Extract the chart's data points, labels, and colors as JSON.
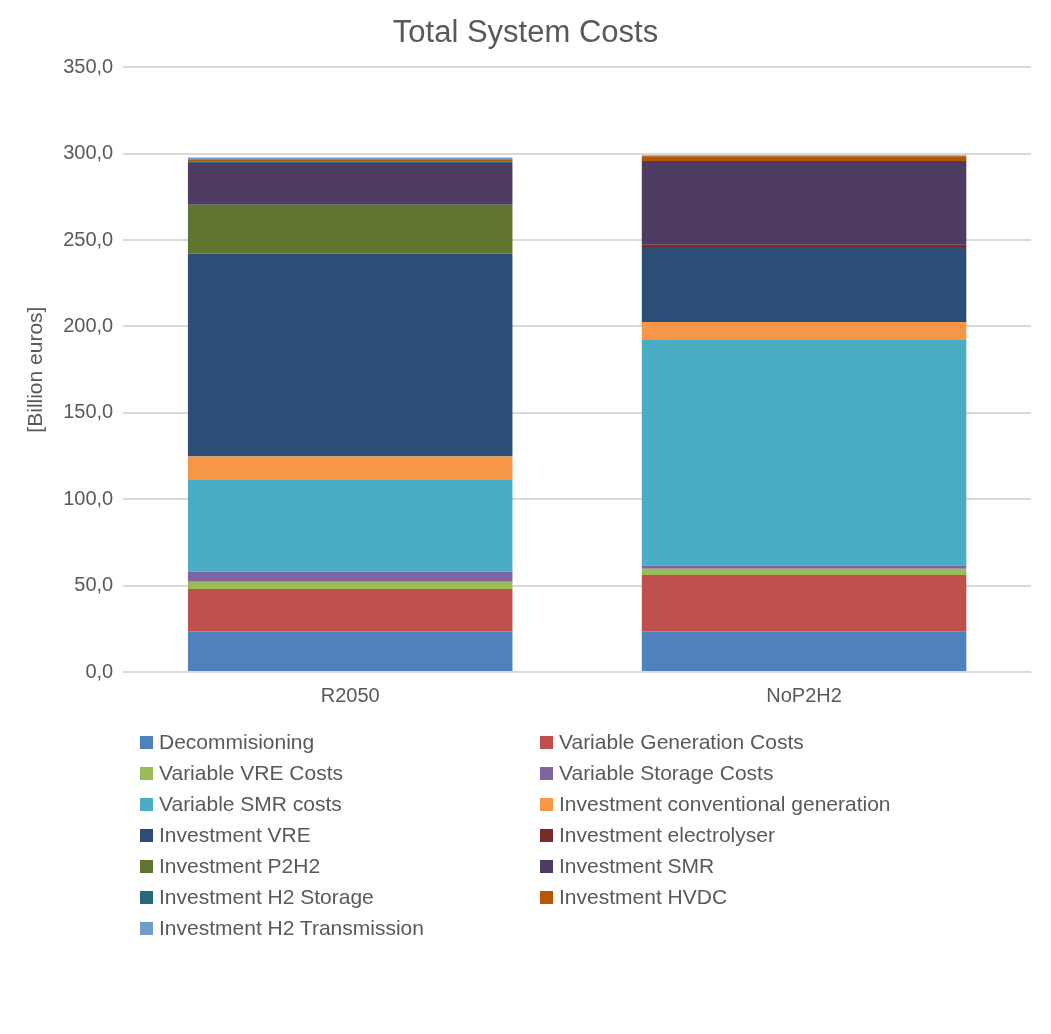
{
  "chart_data": {
    "type": "bar",
    "title": "Total System Costs",
    "ylabel": "[Billion euros]",
    "categories": [
      "R2050",
      "NoP2H2"
    ],
    "stacked": true,
    "legend": "bottom",
    "grid": "y",
    "ylim": [
      0,
      350
    ],
    "yticks": [
      {
        "value": 0,
        "label": "0,0"
      },
      {
        "value": 50,
        "label": "50,0"
      },
      {
        "value": 100,
        "label": "100,0"
      },
      {
        "value": 150,
        "label": "150,0"
      },
      {
        "value": 200,
        "label": "200,0"
      },
      {
        "value": 250,
        "label": "250,0"
      },
      {
        "value": 300,
        "label": "300,0"
      },
      {
        "value": 350,
        "label": "350,0"
      }
    ],
    "series": [
      {
        "name": "Decommisioning",
        "color": "#4f81bd",
        "values": [
          23.6,
          23.6
        ]
      },
      {
        "name": "Variable Generation Costs",
        "color": "#c0504d",
        "values": [
          24.4,
          32.6
        ]
      },
      {
        "name": "Variable VRE Costs",
        "color": "#9bbb59",
        "values": [
          4.3,
          3.5
        ]
      },
      {
        "name": "Variable Storage Costs",
        "color": "#8064a2",
        "values": [
          5.9,
          2.0
        ]
      },
      {
        "name": "Variable SMR costs",
        "color": "#4bacc6",
        "values": [
          53.3,
          130.9
        ]
      },
      {
        "name": "Investment conventional generation",
        "color": "#f79646",
        "values": [
          13.2,
          9.9
        ]
      },
      {
        "name": "Investment VRE",
        "color": "#2c4d75",
        "values": [
          117.5,
          43.4
        ]
      },
      {
        "name": "Investment electrolyser",
        "color": "#772c2a",
        "values": [
          0,
          1.4
        ]
      },
      {
        "name": "Investment P2H2",
        "color": "#5f7530",
        "values": [
          28.2,
          0
        ]
      },
      {
        "name": "Investment SMR",
        "color": "#4d3b62",
        "values": [
          24.2,
          48.4
        ]
      },
      {
        "name": "Investment H2 Storage",
        "color": "#276a7c",
        "values": [
          1.0,
          0
        ]
      },
      {
        "name": "Investment HVDC",
        "color": "#b65708",
        "values": [
          1.2,
          2.8
        ]
      },
      {
        "name": "Investment H2 Transmission",
        "color": "#729aca",
        "values": [
          1.0,
          0.5
        ]
      }
    ]
  }
}
